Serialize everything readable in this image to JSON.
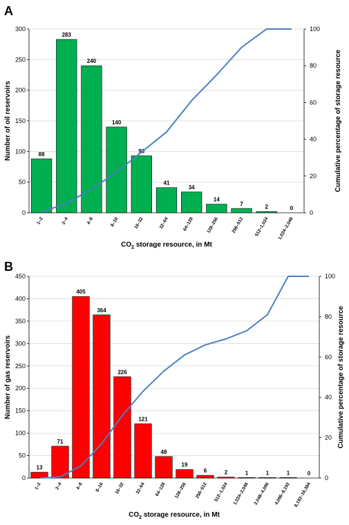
{
  "chart_data": [
    {
      "panel": "A",
      "type": "bar",
      "categories": [
        "1–2",
        "2–4",
        "4–8",
        "8–16",
        "16–32",
        "32–64",
        "64–128",
        "128–256",
        "256–512",
        "512–1,024",
        "1,024–2,048"
      ],
      "series": [
        {
          "values": [
            88,
            283,
            240,
            140,
            93,
            41,
            34,
            14,
            7,
            2,
            0
          ]
        }
      ],
      "line_series": {
        "values": [
          0.5,
          5,
          13,
          22,
          33,
          44,
          61,
          75,
          90,
          100,
          100
        ]
      },
      "xlabel_main": "CO",
      "xlabel_sub": "2",
      "xlabel_rest": " storage resource, in Mt",
      "ylabel": "Number of oil reservoirs",
      "y2label": "Cumulative percentage of storage resource",
      "ylim": [
        0,
        300
      ],
      "y2lim": [
        0,
        100
      ],
      "yticks": [
        0,
        50,
        100,
        150,
        200,
        250,
        300
      ],
      "y2ticks": [
        0,
        20,
        40,
        60,
        80,
        100
      ],
      "grid": true,
      "colors": {
        "bar": "#00b050",
        "line": "#4a7fc0"
      }
    },
    {
      "panel": "B",
      "type": "bar",
      "categories": [
        "1–2",
        "2–4",
        "4–8",
        "8–16",
        "16–32",
        "32–64",
        "64–128",
        "128–256",
        "256–512",
        "512–1,024",
        "1,024–2,048",
        "2,048–4,096",
        "4,096–8,192",
        "8,192–16,384"
      ],
      "series": [
        {
          "values": [
            13,
            71,
            405,
            364,
            226,
            121,
            48,
            19,
            6,
            2,
            1,
            1,
            1,
            0
          ]
        }
      ],
      "line_series": {
        "values": [
          0,
          0.5,
          6,
          17,
          31,
          43,
          53,
          61,
          66,
          69,
          73,
          81,
          100,
          100
        ]
      },
      "xlabel_main": "CO",
      "xlabel_sub": "2",
      "xlabel_rest": " storage resource, in Mt",
      "ylabel": "Number of gas reservoirs",
      "y2label": "Cumulative percentage of storage resource",
      "ylim": [
        0,
        450
      ],
      "y2lim": [
        0,
        100
      ],
      "yticks": [
        0,
        50,
        100,
        150,
        200,
        250,
        300,
        350,
        400,
        450
      ],
      "y2ticks": [
        0,
        20,
        40,
        60,
        80,
        100
      ],
      "grid": true,
      "colors": {
        "bar": "#ff0000",
        "line": "#4a7fc0"
      }
    }
  ]
}
